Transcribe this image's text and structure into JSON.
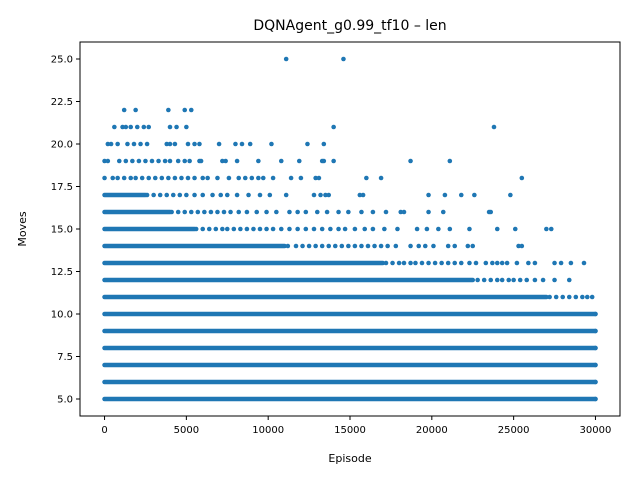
{
  "chart_data": {
    "type": "scatter",
    "title": "DQNAgent_g0.99_tf10 – len",
    "xlabel": "Episode",
    "ylabel": "Moves",
    "xlim": [
      -1500,
      31500
    ],
    "ylim": [
      4.0,
      26.0
    ],
    "x_ticks": [
      0,
      5000,
      10000,
      15000,
      20000,
      25000,
      30000
    ],
    "x_tick_labels": [
      "0",
      "5000",
      "10000",
      "15000",
      "20000",
      "25000",
      "30000"
    ],
    "y_ticks": [
      5.0,
      7.5,
      10.0,
      12.5,
      15.0,
      17.5,
      20.0,
      22.5,
      25.0
    ],
    "y_tick_labels": [
      "5.0",
      "7.5",
      "10.0",
      "12.5",
      "15.0",
      "17.5",
      "20.0",
      "22.5",
      "25.0"
    ],
    "grid": false,
    "legend": "none",
    "marker_color": "#1f77b4",
    "series": [
      {
        "bands": [
          {
            "y": 5,
            "x_start": 0,
            "x_end": 30000
          },
          {
            "y": 6,
            "x_start": 0,
            "x_end": 30000
          },
          {
            "y": 7,
            "x_start": 0,
            "x_end": 30000
          },
          {
            "y": 8,
            "x_start": 0,
            "x_end": 30000
          },
          {
            "y": 9,
            "x_start": 0,
            "x_end": 30000
          },
          {
            "y": 10,
            "x_start": 0,
            "x_end": 30000
          },
          {
            "y": 11,
            "x_start": 0,
            "x_end": 27000
          },
          {
            "y": 12,
            "x_start": 0,
            "x_end": 22500
          },
          {
            "y": 13,
            "x_start": 0,
            "x_end": 17000
          },
          {
            "y": 14,
            "x_start": 0,
            "x_end": 11000
          },
          {
            "y": 15,
            "x_start": 0,
            "x_end": 5500
          },
          {
            "y": 16,
            "x_start": 0,
            "x_end": 4000
          },
          {
            "y": 17,
            "x_start": 0,
            "x_end": 2500
          }
        ],
        "points": [
          [
            30000,
            5
          ],
          [
            30000,
            6
          ],
          [
            30000,
            7
          ],
          [
            30000,
            8
          ],
          [
            30000,
            9
          ],
          [
            30000,
            10
          ],
          [
            27200,
            11
          ],
          [
            27600,
            11
          ],
          [
            28000,
            11
          ],
          [
            28400,
            11
          ],
          [
            28800,
            11
          ],
          [
            29200,
            11
          ],
          [
            29500,
            11
          ],
          [
            29800,
            11
          ],
          [
            22800,
            12
          ],
          [
            23200,
            12
          ],
          [
            23600,
            12
          ],
          [
            24000,
            12
          ],
          [
            24300,
            12
          ],
          [
            24700,
            12
          ],
          [
            25000,
            12
          ],
          [
            25400,
            12
          ],
          [
            25800,
            12
          ],
          [
            26300,
            12
          ],
          [
            26800,
            12
          ],
          [
            27500,
            12
          ],
          [
            28400,
            12
          ],
          [
            17200,
            13
          ],
          [
            17600,
            13
          ],
          [
            18000,
            13
          ],
          [
            18300,
            13
          ],
          [
            18700,
            13
          ],
          [
            19000,
            13
          ],
          [
            19400,
            13
          ],
          [
            19800,
            13
          ],
          [
            20200,
            13
          ],
          [
            20600,
            13
          ],
          [
            21000,
            13
          ],
          [
            21400,
            13
          ],
          [
            21800,
            13
          ],
          [
            22300,
            13
          ],
          [
            22700,
            13
          ],
          [
            23300,
            13
          ],
          [
            23700,
            13
          ],
          [
            24000,
            13
          ],
          [
            24300,
            13
          ],
          [
            24600,
            13
          ],
          [
            25200,
            13
          ],
          [
            25900,
            13
          ],
          [
            26300,
            13
          ],
          [
            27500,
            13
          ],
          [
            27900,
            13
          ],
          [
            28500,
            13
          ],
          [
            29300,
            13
          ],
          [
            11200,
            14
          ],
          [
            11700,
            14
          ],
          [
            12100,
            14
          ],
          [
            12500,
            14
          ],
          [
            12900,
            14
          ],
          [
            13300,
            14
          ],
          [
            13700,
            14
          ],
          [
            14100,
            14
          ],
          [
            14500,
            14
          ],
          [
            14900,
            14
          ],
          [
            15300,
            14
          ],
          [
            15700,
            14
          ],
          [
            16100,
            14
          ],
          [
            16500,
            14
          ],
          [
            16900,
            14
          ],
          [
            17300,
            14
          ],
          [
            17800,
            14
          ],
          [
            18700,
            14
          ],
          [
            19200,
            14
          ],
          [
            19600,
            14
          ],
          [
            20100,
            14
          ],
          [
            21000,
            14
          ],
          [
            21400,
            14
          ],
          [
            22200,
            14
          ],
          [
            22500,
            14
          ],
          [
            25300,
            14
          ],
          [
            25500,
            14
          ],
          [
            5600,
            15
          ],
          [
            6000,
            15
          ],
          [
            6400,
            15
          ],
          [
            6800,
            15
          ],
          [
            7200,
            15
          ],
          [
            7500,
            15
          ],
          [
            7900,
            15
          ],
          [
            8300,
            15
          ],
          [
            8700,
            15
          ],
          [
            9100,
            15
          ],
          [
            9500,
            15
          ],
          [
            9900,
            15
          ],
          [
            10300,
            15
          ],
          [
            10800,
            15
          ],
          [
            11300,
            15
          ],
          [
            11800,
            15
          ],
          [
            12300,
            15
          ],
          [
            12800,
            15
          ],
          [
            13300,
            15
          ],
          [
            13800,
            15
          ],
          [
            14300,
            15
          ],
          [
            14700,
            15
          ],
          [
            15300,
            15
          ],
          [
            15900,
            15
          ],
          [
            16400,
            15
          ],
          [
            17100,
            15
          ],
          [
            17900,
            15
          ],
          [
            19100,
            15
          ],
          [
            19700,
            15
          ],
          [
            20400,
            15
          ],
          [
            21100,
            15
          ],
          [
            22300,
            15
          ],
          [
            24000,
            15
          ],
          [
            25100,
            15
          ],
          [
            27000,
            15
          ],
          [
            27300,
            15
          ],
          [
            4100,
            16
          ],
          [
            4500,
            16
          ],
          [
            4900,
            16
          ],
          [
            5300,
            16
          ],
          [
            5700,
            16
          ],
          [
            6100,
            16
          ],
          [
            6500,
            16
          ],
          [
            6900,
            16
          ],
          [
            7300,
            16
          ],
          [
            7700,
            16
          ],
          [
            8200,
            16
          ],
          [
            8700,
            16
          ],
          [
            9300,
            16
          ],
          [
            9900,
            16
          ],
          [
            10500,
            16
          ],
          [
            11300,
            16
          ],
          [
            11800,
            16
          ],
          [
            12300,
            16
          ],
          [
            13000,
            16
          ],
          [
            13600,
            16
          ],
          [
            14300,
            16
          ],
          [
            14900,
            16
          ],
          [
            15700,
            16
          ],
          [
            16400,
            16
          ],
          [
            17200,
            16
          ],
          [
            18100,
            16
          ],
          [
            18300,
            16
          ],
          [
            19800,
            16
          ],
          [
            20700,
            16
          ],
          [
            23500,
            16
          ],
          [
            23600,
            16
          ],
          [
            2600,
            17
          ],
          [
            3000,
            17
          ],
          [
            3400,
            17
          ],
          [
            3800,
            17
          ],
          [
            4200,
            17
          ],
          [
            4600,
            17
          ],
          [
            5000,
            17
          ],
          [
            5500,
            17
          ],
          [
            6000,
            17
          ],
          [
            6600,
            17
          ],
          [
            7100,
            17
          ],
          [
            7500,
            17
          ],
          [
            8100,
            17
          ],
          [
            8800,
            17
          ],
          [
            9500,
            17
          ],
          [
            10100,
            17
          ],
          [
            11100,
            17
          ],
          [
            12800,
            17
          ],
          [
            13200,
            17
          ],
          [
            13500,
            17
          ],
          [
            13700,
            17
          ],
          [
            15600,
            17
          ],
          [
            15800,
            17
          ],
          [
            19800,
            17
          ],
          [
            20800,
            17
          ],
          [
            21800,
            17
          ],
          [
            22600,
            17
          ],
          [
            24800,
            17
          ],
          [
            0,
            18
          ],
          [
            500,
            18
          ],
          [
            800,
            18
          ],
          [
            1200,
            18
          ],
          [
            1600,
            18
          ],
          [
            1900,
            18
          ],
          [
            2300,
            18
          ],
          [
            2700,
            18
          ],
          [
            3100,
            18
          ],
          [
            3500,
            18
          ],
          [
            3900,
            18
          ],
          [
            4300,
            18
          ],
          [
            4700,
            18
          ],
          [
            5100,
            18
          ],
          [
            5500,
            18
          ],
          [
            6000,
            18
          ],
          [
            6300,
            18
          ],
          [
            6900,
            18
          ],
          [
            7600,
            18
          ],
          [
            8200,
            18
          ],
          [
            8600,
            18
          ],
          [
            9000,
            18
          ],
          [
            9400,
            18
          ],
          [
            9700,
            18
          ],
          [
            10300,
            18
          ],
          [
            11400,
            18
          ],
          [
            12000,
            18
          ],
          [
            12900,
            18
          ],
          [
            13100,
            18
          ],
          [
            16000,
            18
          ],
          [
            16900,
            18
          ],
          [
            25500,
            18
          ],
          [
            0,
            19
          ],
          [
            200,
            19
          ],
          [
            900,
            19
          ],
          [
            1300,
            19
          ],
          [
            1700,
            19
          ],
          [
            2100,
            19
          ],
          [
            2500,
            19
          ],
          [
            2900,
            19
          ],
          [
            3300,
            19
          ],
          [
            3700,
            19
          ],
          [
            4000,
            19
          ],
          [
            4500,
            19
          ],
          [
            4900,
            19
          ],
          [
            5200,
            19
          ],
          [
            5800,
            19
          ],
          [
            5900,
            19
          ],
          [
            7200,
            19
          ],
          [
            7400,
            19
          ],
          [
            8100,
            19
          ],
          [
            9400,
            19
          ],
          [
            10800,
            19
          ],
          [
            11900,
            19
          ],
          [
            13300,
            19
          ],
          [
            13400,
            19
          ],
          [
            14000,
            19
          ],
          [
            18700,
            19
          ],
          [
            21100,
            19
          ],
          [
            200,
            20
          ],
          [
            400,
            20
          ],
          [
            800,
            20
          ],
          [
            1400,
            20
          ],
          [
            1800,
            20
          ],
          [
            2200,
            20
          ],
          [
            2600,
            20
          ],
          [
            3800,
            20
          ],
          [
            4000,
            20
          ],
          [
            4300,
            20
          ],
          [
            5100,
            20
          ],
          [
            5500,
            20
          ],
          [
            5800,
            20
          ],
          [
            7000,
            20
          ],
          [
            8000,
            20
          ],
          [
            8400,
            20
          ],
          [
            8900,
            20
          ],
          [
            10200,
            20
          ],
          [
            12400,
            20
          ],
          [
            13400,
            20
          ],
          [
            600,
            21
          ],
          [
            1100,
            21
          ],
          [
            1300,
            21
          ],
          [
            1600,
            21
          ],
          [
            2000,
            21
          ],
          [
            2400,
            21
          ],
          [
            2700,
            21
          ],
          [
            4000,
            21
          ],
          [
            4400,
            21
          ],
          [
            5000,
            21
          ],
          [
            14000,
            21
          ],
          [
            23800,
            21
          ],
          [
            1200,
            22
          ],
          [
            1900,
            22
          ],
          [
            3900,
            22
          ],
          [
            4900,
            22
          ],
          [
            5300,
            22
          ],
          [
            11100,
            25
          ],
          [
            14600,
            25
          ]
        ]
      }
    ]
  }
}
